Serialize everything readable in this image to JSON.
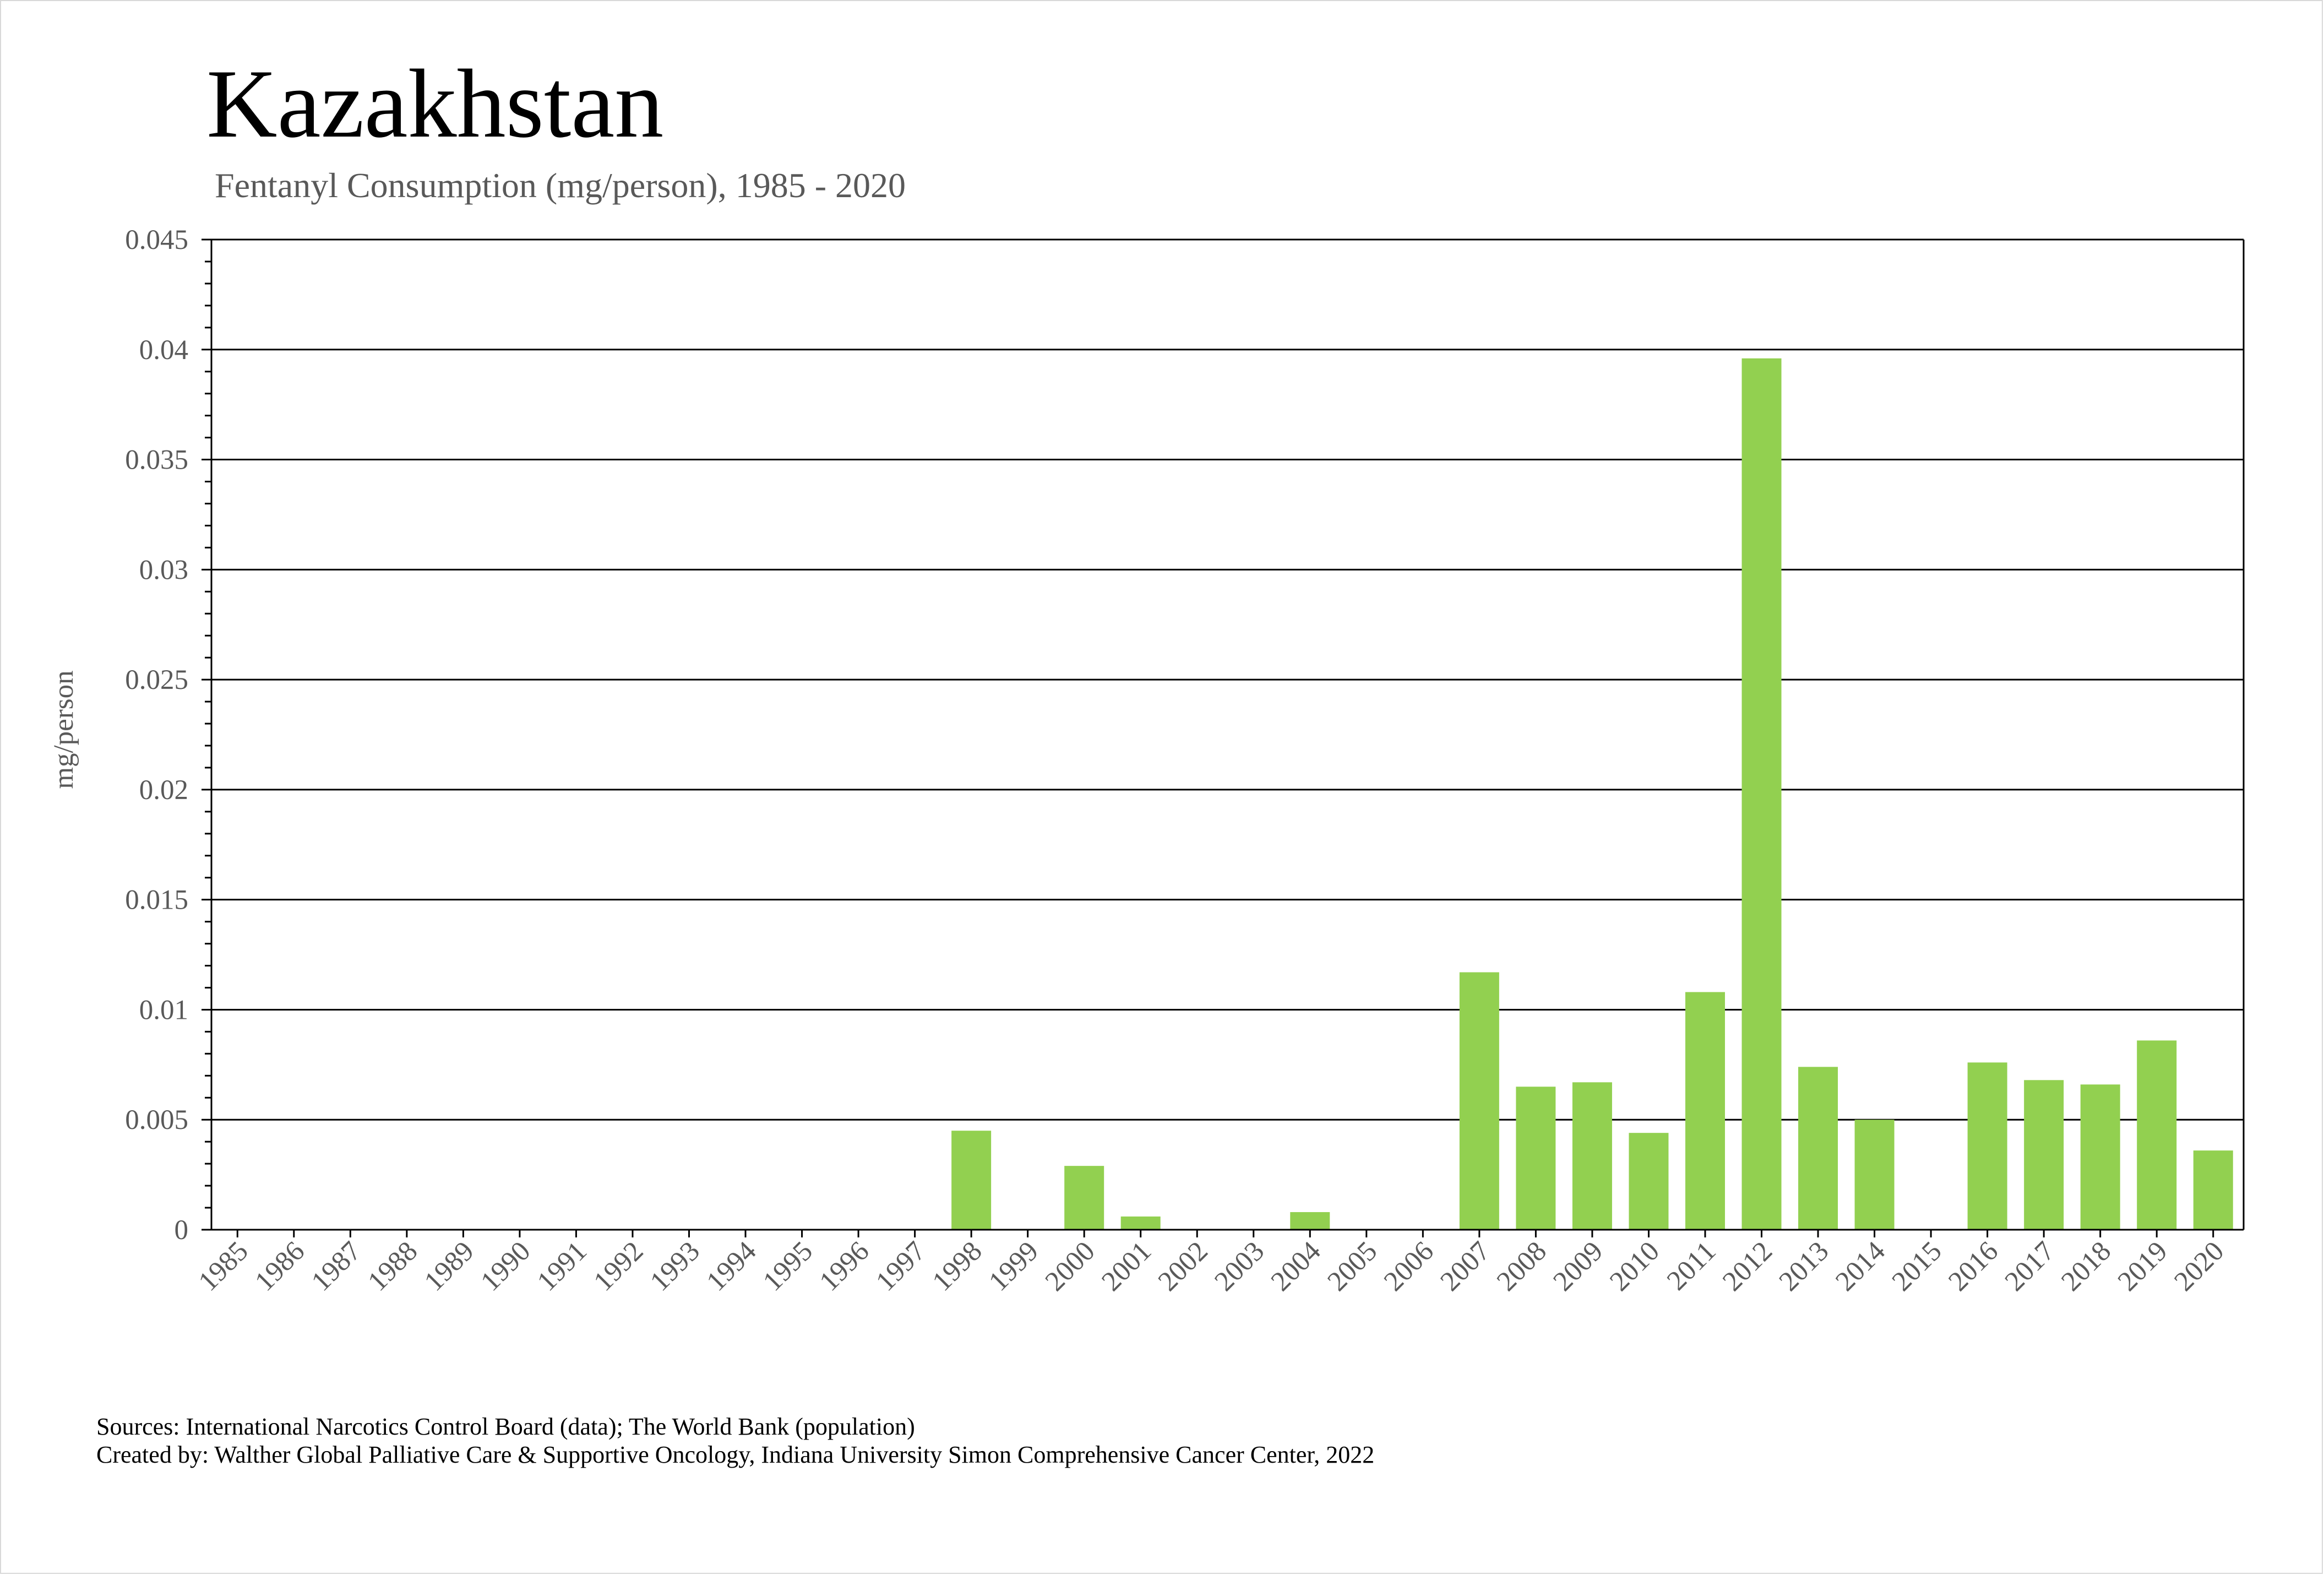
{
  "chart_data": {
    "type": "bar",
    "title": "Kazakhstan",
    "subtitle": "Fentanyl Consumption (mg/person), 1985 - 2020",
    "ylabel": "mg/person",
    "xlabel": "",
    "ylim": [
      0,
      0.045
    ],
    "y_ticks": [
      "0",
      "0.005",
      "0.01",
      "0.015",
      "0.02",
      "0.025",
      "0.03",
      "0.035",
      "0.04",
      "0.045"
    ],
    "y_tick_values": [
      0,
      0.005,
      0.01,
      0.015,
      0.02,
      0.025,
      0.03,
      0.035,
      0.04,
      0.045
    ],
    "grid": true,
    "bar_color": "#92d050",
    "categories": [
      "1985",
      "1986",
      "1987",
      "1988",
      "1989",
      "1990",
      "1991",
      "1992",
      "1993",
      "1994",
      "1995",
      "1996",
      "1997",
      "1998",
      "1999",
      "2000",
      "2001",
      "2002",
      "2003",
      "2004",
      "2005",
      "2006",
      "2007",
      "2008",
      "2009",
      "2010",
      "2011",
      "2012",
      "2013",
      "2014",
      "2015",
      "2016",
      "2017",
      "2018",
      "2019",
      "2020"
    ],
    "values": [
      0,
      0,
      0,
      0,
      0,
      0,
      0,
      0,
      0,
      0,
      0,
      0,
      0,
      0.0045,
      0,
      0.0029,
      0.0006,
      0,
      0,
      0.0008,
      0,
      0,
      0.0117,
      0.0065,
      0.0067,
      0.0044,
      0.0108,
      0.0396,
      0.0074,
      0.005,
      0,
      0.0076,
      0.0068,
      0.0066,
      0.0086,
      0.0036
    ]
  },
  "footer": {
    "sources": "Sources: International Narcotics Control Board (data); The World Bank (population)",
    "created_by": "Created by: Walther Global Palliative Care & Supportive Oncology, Indiana University Simon Comprehensive Cancer Center, 2022"
  }
}
